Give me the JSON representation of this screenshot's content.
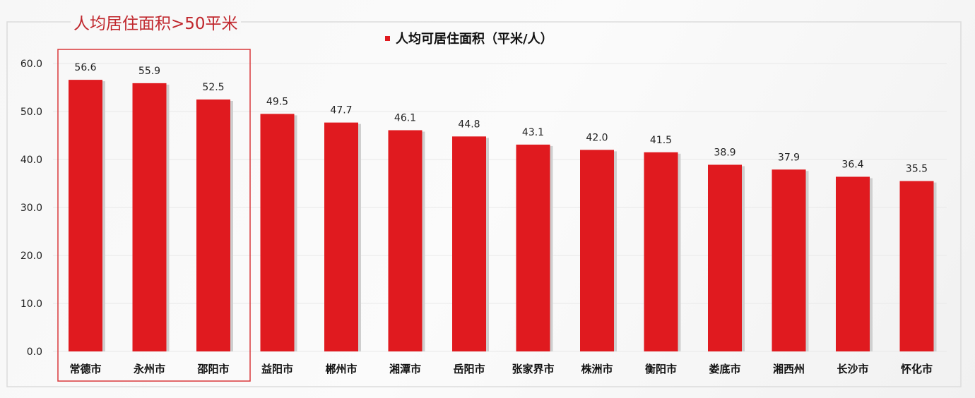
{
  "annotation": "人均居住面积>50平米",
  "chart_data": {
    "type": "bar",
    "legend": {
      "label": "人均可居住面积（平米/人）",
      "position": "top"
    },
    "categories": [
      "常德市",
      "永州市",
      "邵阳市",
      "益阳市",
      "郴州市",
      "湘潭市",
      "岳阳市",
      "张家界市",
      "株洲市",
      "衡阳市",
      "娄底市",
      "湘西州",
      "长沙市",
      "怀化市"
    ],
    "values": [
      56.6,
      55.9,
      52.5,
      49.5,
      47.7,
      46.1,
      44.8,
      43.1,
      42.0,
      41.5,
      38.9,
      37.9,
      36.4,
      35.5
    ],
    "value_labels": [
      "56.6",
      "55.9",
      "52.5",
      "49.5",
      "47.7",
      "46.1",
      "44.8",
      "43.1",
      "42.0",
      "41.5",
      "38.9",
      "37.9",
      "36.4",
      "35.5"
    ],
    "ylim": [
      0,
      60
    ],
    "yticks": [
      "0.0",
      "10.0",
      "20.0",
      "30.0",
      "40.0",
      "50.0",
      "60.0"
    ],
    "grid": true,
    "highlighted_categories": [
      "常德市",
      "永州市",
      "邵阳市"
    ],
    "bar_color": "#e01a1f",
    "highlight_box_color": "#d9383a"
  }
}
